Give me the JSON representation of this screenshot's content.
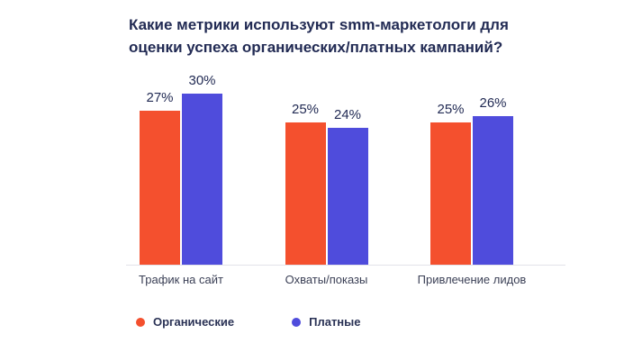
{
  "title": "Какие метрики используют smm-маркетологи для оценки успеха органических/платных кампаний?",
  "chart_data": {
    "type": "bar",
    "categories": [
      "Трафик на сайт",
      "Охваты/показы",
      "Привлечение лидов"
    ],
    "series": [
      {
        "name": "Органические",
        "color": "#F4502E",
        "values": [
          27,
          25,
          25
        ]
      },
      {
        "name": "Платные",
        "color": "#4F4CDC",
        "values": [
          30,
          24,
          26
        ]
      }
    ],
    "value_suffix": "%",
    "ylim": [
      0,
      30
    ],
    "grid": false,
    "data_labels": true,
    "legend_position": "bottom"
  }
}
